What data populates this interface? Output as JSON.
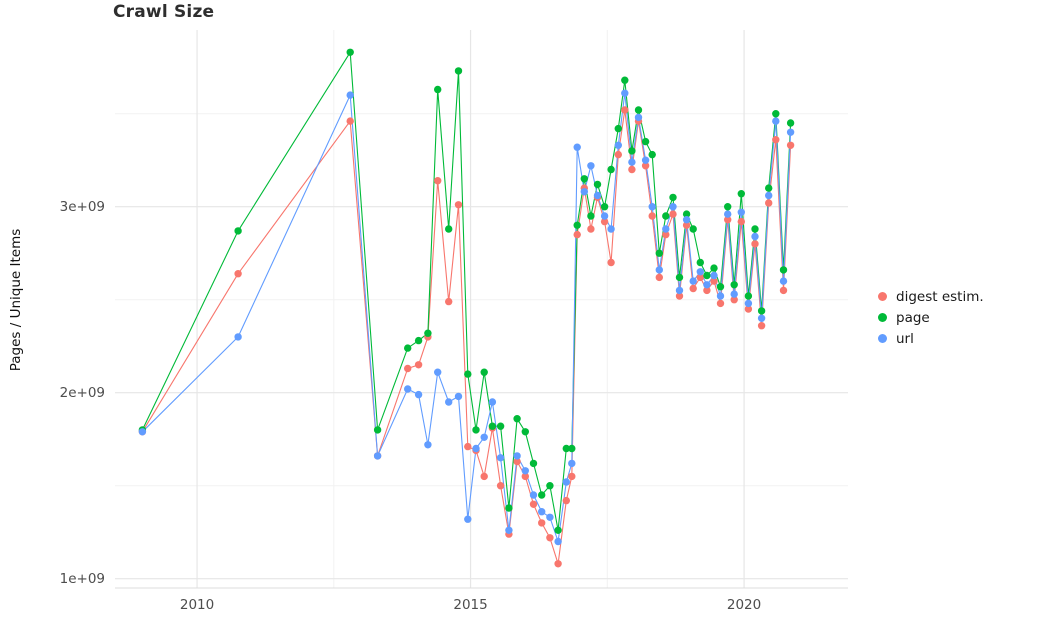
{
  "chart_data": {
    "type": "line",
    "title": "Crawl Size",
    "ylabel": "Pages / Unique Items",
    "xlabel": "",
    "legend_position": "right",
    "grid": true,
    "xlim": [
      2008.5,
      2021.9
    ],
    "ylim": [
      0.95,
      3.95
    ],
    "y_scale": 1000000000,
    "y_unit_note": "values are in billions (axis shown as 1e+09, 2e+09, 3e+09)",
    "x_tick_values": [
      2010,
      2015,
      2020
    ],
    "x_tick_labels": [
      "2010",
      "2015",
      "2020"
    ],
    "x_minor_ticks": [
      2012.5,
      2017.5
    ],
    "y_tick_values": [
      1,
      2,
      3
    ],
    "y_tick_labels": [
      "1e+09",
      "2e+09",
      "3e+09"
    ],
    "y_minor_ticks": [
      1.5,
      2.5,
      3.5
    ],
    "x": [
      2009.0,
      2010.75,
      2012.8,
      2013.3,
      2013.85,
      2014.05,
      2014.22,
      2014.4,
      2014.6,
      2014.78,
      2014.95,
      2015.1,
      2015.25,
      2015.4,
      2015.55,
      2015.7,
      2015.85,
      2016.0,
      2016.15,
      2016.3,
      2016.45,
      2016.6,
      2016.75,
      2016.85,
      2016.95,
      2017.08,
      2017.2,
      2017.32,
      2017.45,
      2017.57,
      2017.7,
      2017.82,
      2017.95,
      2018.07,
      2018.2,
      2018.32,
      2018.45,
      2018.57,
      2018.7,
      2018.82,
      2018.95,
      2019.07,
      2019.2,
      2019.32,
      2019.45,
      2019.57,
      2019.7,
      2019.82,
      2019.95,
      2020.08,
      2020.2,
      2020.32,
      2020.45,
      2020.58,
      2020.72,
      2020.85
    ],
    "series": [
      {
        "name": "digest estim.",
        "color": "#F8766D",
        "values": [
          1.79,
          2.64,
          3.46,
          1.66,
          2.13,
          2.15,
          2.3,
          3.14,
          2.49,
          3.01,
          1.71,
          1.69,
          1.55,
          1.81,
          1.5,
          1.24,
          1.63,
          1.55,
          1.4,
          1.3,
          1.22,
          1.08,
          1.42,
          1.55,
          2.85,
          3.1,
          2.88,
          3.05,
          2.92,
          2.7,
          3.28,
          3.52,
          3.2,
          3.46,
          3.22,
          2.95,
          2.62,
          2.85,
          2.96,
          2.52,
          2.9,
          2.56,
          2.62,
          2.55,
          2.6,
          2.48,
          2.93,
          2.5,
          2.92,
          2.45,
          2.8,
          2.36,
          3.02,
          3.36,
          2.55,
          3.33
        ]
      },
      {
        "name": "page",
        "color": "#00BA38",
        "values": [
          1.8,
          2.87,
          3.83,
          1.8,
          2.24,
          2.28,
          2.32,
          3.63,
          2.88,
          3.73,
          2.1,
          1.8,
          2.11,
          1.82,
          1.82,
          1.38,
          1.86,
          1.79,
          1.62,
          1.45,
          1.5,
          1.26,
          1.7,
          1.7,
          2.9,
          3.15,
          2.95,
          3.12,
          3.0,
          3.2,
          3.42,
          3.68,
          3.3,
          3.52,
          3.35,
          3.28,
          2.75,
          2.95,
          3.05,
          2.62,
          2.96,
          2.88,
          2.7,
          2.63,
          2.67,
          2.57,
          3.0,
          2.58,
          3.07,
          2.52,
          2.88,
          2.44,
          3.1,
          3.5,
          2.66,
          3.45
        ]
      },
      {
        "name": "url",
        "color": "#619CFF",
        "values": [
          1.79,
          2.3,
          3.6,
          1.66,
          2.02,
          1.99,
          1.72,
          2.11,
          1.95,
          1.98,
          1.32,
          1.7,
          1.76,
          1.95,
          1.65,
          1.26,
          1.66,
          1.58,
          1.45,
          1.36,
          1.33,
          1.2,
          1.52,
          1.62,
          3.32,
          3.08,
          3.22,
          3.06,
          2.95,
          2.88,
          3.33,
          3.61,
          3.24,
          3.48,
          3.25,
          3.0,
          2.66,
          2.88,
          3.0,
          2.55,
          2.93,
          2.6,
          2.65,
          2.58,
          2.63,
          2.52,
          2.96,
          2.53,
          2.97,
          2.48,
          2.84,
          2.4,
          3.06,
          3.46,
          2.6,
          3.4
        ]
      }
    ]
  },
  "style": {
    "grid_major_color": "#e6e6e6",
    "grid_minor_color": "#f2f2f2",
    "axis_line_color": "#dcdcdc",
    "tick_label_color": "#4d4d4d"
  }
}
